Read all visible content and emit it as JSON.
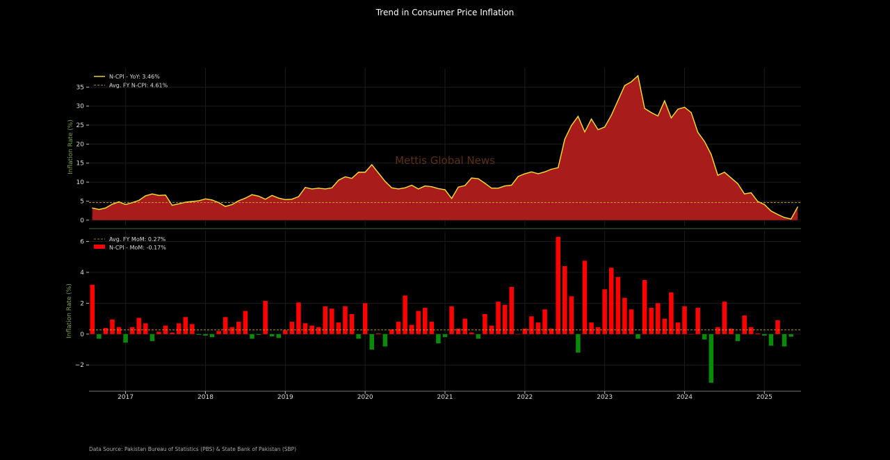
{
  "title": "Trend in Consumer Price Inflation",
  "source": "Data Source: Pakistan Bureau of Statistics (PBS) & State Bank of Pakistan (SBP)",
  "watermark": "Mettis Global News",
  "colors": {
    "background": "#000000",
    "yoy_line": "#f5e23a",
    "yoy_fill": "#a81c1c",
    "avg_line": "#d9a322",
    "mom_pos": "#ff0000",
    "mom_neg": "#0a8a0a",
    "axis_label": "#7aa346",
    "divider": "#3a6b3a"
  },
  "chart_data": [
    {
      "type": "area",
      "legend_position": "top-left",
      "ylabel": "Inflation Rate (%)",
      "ylim": [
        -1.5,
        40
      ],
      "yticks": [
        0,
        5,
        10,
        15,
        20,
        25,
        30,
        35
      ],
      "grid": true,
      "x_start": "2016-08",
      "x_end": "2025-06",
      "series": [
        {
          "name": "N-CPI - YoY: 3.46%",
          "type": "line",
          "values": [
            3.2,
            2.8,
            3.2,
            4.2,
            4.8,
            4.1,
            4.6,
            5.2,
            6.4,
            6.9,
            6.5,
            6.6,
            3.9,
            4.3,
            4.7,
            4.9,
            5.1,
            5.6,
            5.3,
            4.6,
            3.6,
            4.1,
            5.1,
            5.8,
            6.7,
            6.3,
            5.5,
            6.5,
            5.8,
            5.4,
            5.5,
            6.2,
            8.6,
            8.2,
            8.4,
            8.2,
            8.5,
            10.5,
            11.4,
            11.0,
            12.6,
            12.6,
            14.6,
            12.4,
            10.2,
            8.5,
            8.2,
            8.5,
            9.2,
            8.2,
            9.0,
            8.8,
            8.3,
            8.0,
            5.7,
            8.7,
            9.1,
            11.1,
            10.9,
            9.7,
            8.4,
            8.4,
            9.0,
            9.2,
            11.5,
            12.2,
            12.7,
            12.2,
            12.7,
            13.4,
            13.8,
            21.3,
            24.9,
            27.3,
            23.2,
            26.6,
            23.8,
            24.5,
            27.6,
            31.5,
            35.4,
            36.4,
            38.0,
            29.4,
            28.3,
            27.4,
            31.4,
            26.9,
            29.2,
            29.7,
            28.3,
            23.1,
            20.7,
            17.3,
            11.8,
            12.6,
            11.1,
            9.6,
            6.9,
            7.2,
            4.9,
            4.1,
            2.4,
            1.5,
            0.7,
            0.3,
            3.46
          ]
        },
        {
          "name": "Avg. FY N-CPI: 4.61%",
          "type": "hline",
          "value": 4.61
        }
      ]
    },
    {
      "type": "bar",
      "legend_position": "top-left",
      "ylabel": "Inflation Rate (%)",
      "ylim": [
        -3.7,
        6.7
      ],
      "yticks": [
        -2,
        0,
        2,
        4,
        6
      ],
      "grid": true,
      "x_start": "2016-08",
      "x_end": "2025-06",
      "xtick_labels": [
        "2017",
        "2018",
        "2019",
        "2020",
        "2021",
        "2022",
        "2023",
        "2024",
        "2025"
      ],
      "series": [
        {
          "name": "Avg. FY MoM: 0.27%",
          "type": "hline",
          "value": 0.27
        },
        {
          "name": "N-CPI - MoM: -0.17%",
          "type": "bar",
          "values": [
            3.2,
            -0.3,
            0.4,
            0.95,
            0.45,
            -0.55,
            0.45,
            1.05,
            0.7,
            -0.45,
            0.15,
            0.55,
            0.1,
            0.7,
            1.1,
            0.65,
            -0.05,
            -0.1,
            -0.2,
            0.2,
            1.1,
            0.45,
            0.8,
            1.5,
            -0.3,
            -0.05,
            2.15,
            -0.15,
            -0.25,
            0.25,
            0.8,
            2.05,
            0.7,
            0.55,
            0.45,
            1.8,
            1.65,
            0.75,
            1.8,
            1.3,
            -0.3,
            2.0,
            -1.0,
            0.05,
            -0.8,
            0.3,
            0.8,
            2.5,
            0.6,
            1.5,
            1.7,
            0.8,
            -0.6,
            -0.2,
            1.8,
            0.35,
            1.0,
            0.1,
            -0.3,
            1.3,
            0.55,
            2.1,
            1.9,
            3.05,
            0.0,
            0.35,
            1.15,
            0.75,
            1.6,
            0.35,
            6.3,
            4.4,
            2.45,
            -1.2,
            4.75,
            0.75,
            0.45,
            2.9,
            4.3,
            3.7,
            2.35,
            1.6,
            -0.3,
            3.5,
            1.7,
            2.0,
            1.0,
            2.7,
            0.75,
            1.8,
            0.0,
            1.7,
            -0.35,
            -3.15,
            0.45,
            2.1,
            0.35,
            -0.45,
            1.2,
            0.45,
            0.05,
            -0.1,
            -0.75,
            0.9,
            -0.8,
            -0.17
          ]
        }
      ]
    }
  ]
}
